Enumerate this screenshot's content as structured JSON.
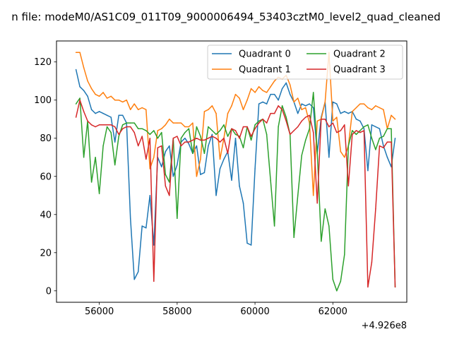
{
  "chart_data": {
    "type": "line",
    "title": "n file: modeM0/AS1C09_011T09_9000006494_53403cztM0_level2_quad_cleaned",
    "xlabel": "",
    "ylabel": "",
    "x_offset_label": "+4.926e8",
    "xlim": [
      54900,
      63900
    ],
    "ylim": [
      -6,
      131
    ],
    "x_ticks": [
      56000,
      58000,
      60000,
      62000
    ],
    "x_tick_labels": [
      "56000",
      "58000",
      "60000",
      "62000"
    ],
    "y_ticks": [
      0,
      20,
      40,
      60,
      80,
      100,
      120
    ],
    "y_tick_labels": [
      "0",
      "20",
      "40",
      "60",
      "80",
      "100",
      "120"
    ],
    "grid": false,
    "legend_position": "top-right",
    "x": [
      55400,
      55500,
      55600,
      55700,
      55800,
      55900,
      56000,
      56100,
      56200,
      56300,
      56400,
      56500,
      56600,
      56700,
      56800,
      56900,
      57000,
      57100,
      57200,
      57300,
      57400,
      57500,
      57600,
      57700,
      57800,
      57900,
      58000,
      58100,
      58200,
      58300,
      58400,
      58500,
      58600,
      58700,
      58800,
      58900,
      59000,
      59100,
      59200,
      59300,
      59400,
      59500,
      59600,
      59700,
      59800,
      59900,
      60000,
      60100,
      60200,
      60300,
      60400,
      60500,
      60600,
      60700,
      60800,
      60900,
      61000,
      61100,
      61200,
      61300,
      61400,
      61500,
      61600,
      61700,
      61800,
      61900,
      62000,
      62100,
      62200,
      62300,
      62400,
      62500,
      62600,
      62700,
      62800,
      62900,
      63000,
      63100,
      63200,
      63300,
      63400,
      63500,
      63600
    ],
    "series": [
      {
        "name": "Quadrant 0",
        "color": "#1f77b4",
        "values": [
          116,
          107,
          105,
          102,
          95,
          93,
          94,
          93,
          92,
          91,
          78,
          92,
          92,
          88,
          38,
          6,
          10,
          34,
          33,
          50,
          24,
          70,
          65,
          73,
          76,
          60,
          66,
          78,
          80,
          77,
          72,
          76,
          61,
          62,
          76,
          82,
          50,
          64,
          69,
          73,
          58,
          80,
          55,
          46,
          25,
          24,
          64,
          98,
          99,
          98,
          103,
          103,
          100,
          106,
          109,
          103,
          99,
          93,
          98,
          97,
          98,
          96,
          72,
          91,
          99,
          70,
          99,
          98,
          93,
          94,
          93,
          94,
          90,
          89,
          85,
          63,
          87,
          86,
          85,
          76,
          70,
          65,
          80
        ]
      },
      {
        "name": "Quadrant 1",
        "color": "#ff7f0e",
        "values": [
          125,
          125,
          117,
          110,
          106,
          103,
          102,
          104,
          101,
          102,
          100,
          100,
          99,
          100,
          95,
          98,
          95,
          96,
          95,
          64,
          70,
          84,
          85,
          87,
          90,
          88,
          88,
          88,
          86,
          86,
          88,
          60,
          69,
          94,
          95,
          97,
          93,
          69,
          80,
          93,
          97,
          103,
          101,
          95,
          100,
          106,
          104,
          107,
          105,
          104,
          107,
          110,
          112,
          111,
          113,
          108,
          99,
          101,
          95,
          96,
          88,
          50,
          89,
          90,
          99,
          125,
          89,
          91,
          73,
          70,
          76,
          94,
          96,
          98,
          98,
          96,
          95,
          97,
          96,
          95,
          85,
          92,
          90
        ]
      },
      {
        "name": "Quadrant 2",
        "color": "#2ca02c",
        "values": [
          98,
          101,
          70,
          89,
          57,
          70,
          51,
          76,
          86,
          83,
          66,
          81,
          87,
          88,
          88,
          88,
          85,
          85,
          84,
          82,
          84,
          80,
          83,
          61,
          57,
          80,
          38,
          80,
          83,
          85,
          72,
          86,
          81,
          72,
          86,
          84,
          82,
          84,
          87,
          81,
          85,
          82,
          81,
          75,
          86,
          79,
          87,
          89,
          90,
          82,
          58,
          34,
          86,
          97,
          91,
          82,
          28,
          50,
          71,
          79,
          85,
          104,
          73,
          26,
          43,
          34,
          6,
          0,
          5,
          19,
          76,
          84,
          82,
          84,
          86,
          87,
          80,
          74,
          80,
          81,
          85,
          85,
          2
        ]
      },
      {
        "name": "Quadrant 3",
        "color": "#d62728",
        "values": [
          91,
          100,
          94,
          89,
          87,
          86,
          87,
          87,
          87,
          87,
          86,
          82,
          85,
          86,
          86,
          83,
          76,
          81,
          69,
          80,
          5,
          75,
          76,
          55,
          50,
          80,
          81,
          76,
          78,
          78,
          79,
          80,
          79,
          79,
          80,
          81,
          80,
          78,
          80,
          72,
          85,
          84,
          80,
          86,
          86,
          81,
          85,
          88,
          90,
          88,
          93,
          93,
          97,
          95,
          89,
          82,
          84,
          86,
          89,
          91,
          92,
          83,
          46,
          90,
          90,
          86,
          88,
          83,
          84,
          87,
          55,
          82,
          84,
          83,
          84,
          2,
          15,
          43,
          76,
          75,
          78,
          78,
          2
        ]
      }
    ]
  }
}
